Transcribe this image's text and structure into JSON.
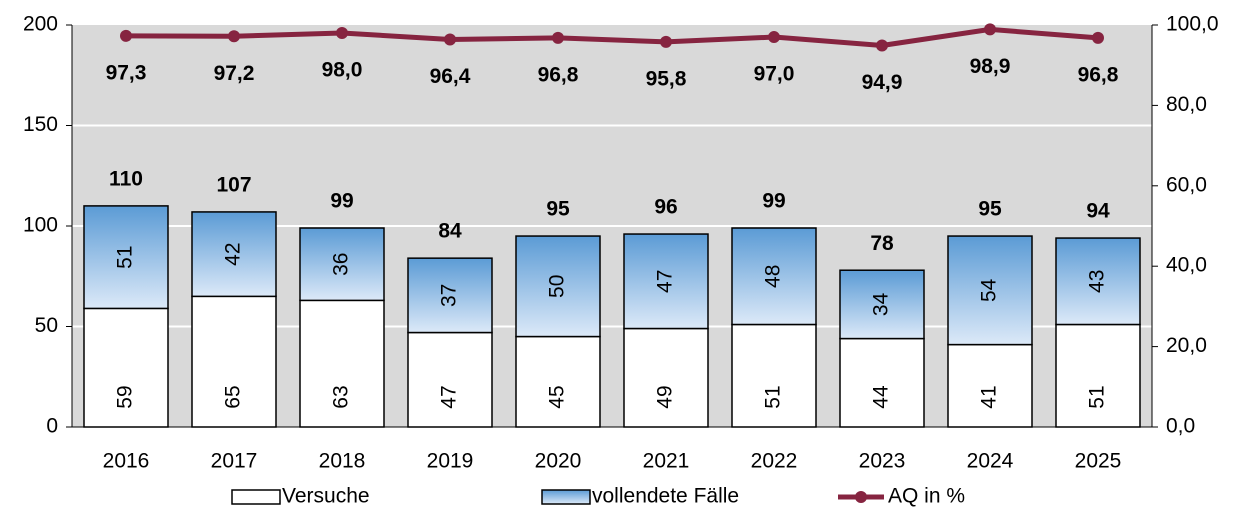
{
  "chart_data": {
    "type": "bar",
    "stacked": true,
    "categories": [
      "2016",
      "2017",
      "2018",
      "2019",
      "2020",
      "2021",
      "2022",
      "2023",
      "2024",
      "2025"
    ],
    "series": [
      {
        "name": "Versuche",
        "color": "#ffffff",
        "values": [
          59,
          65,
          63,
          47,
          45,
          49,
          51,
          44,
          41,
          51
        ]
      },
      {
        "name": "vollendete Fälle",
        "color": "#5b9bd5",
        "values": [
          51,
          42,
          36,
          37,
          50,
          47,
          48,
          34,
          54,
          43
        ]
      },
      {
        "name": "AQ in %",
        "type": "line",
        "axis": "y2",
        "color": "#862440",
        "values": [
          97.3,
          97.2,
          98.0,
          96.4,
          96.8,
          95.8,
          97.0,
          94.9,
          98.9,
          96.8
        ],
        "value_labels": [
          "97,3",
          "97,2",
          "98,0",
          "96,4",
          "96,8",
          "95,8",
          "97,0",
          "94,9",
          "98,9",
          "96,8"
        ]
      }
    ],
    "totals": [
      110,
      107,
      99,
      84,
      95,
      96,
      99,
      78,
      95,
      94
    ],
    "ylim": [
      0,
      200
    ],
    "yticks": [
      0,
      50,
      100,
      150,
      200
    ],
    "y2lim": [
      0,
      100
    ],
    "y2ticks": [
      {
        "value": 0,
        "label": "0,0"
      },
      {
        "value": 20,
        "label": "20,0"
      },
      {
        "value": 40,
        "label": "40,0"
      },
      {
        "value": 60,
        "label": "60,0"
      },
      {
        "value": 80,
        "label": "80,0"
      },
      {
        "value": 100,
        "label": "100,0"
      }
    ],
    "grid": true,
    "legend": "bottom"
  }
}
